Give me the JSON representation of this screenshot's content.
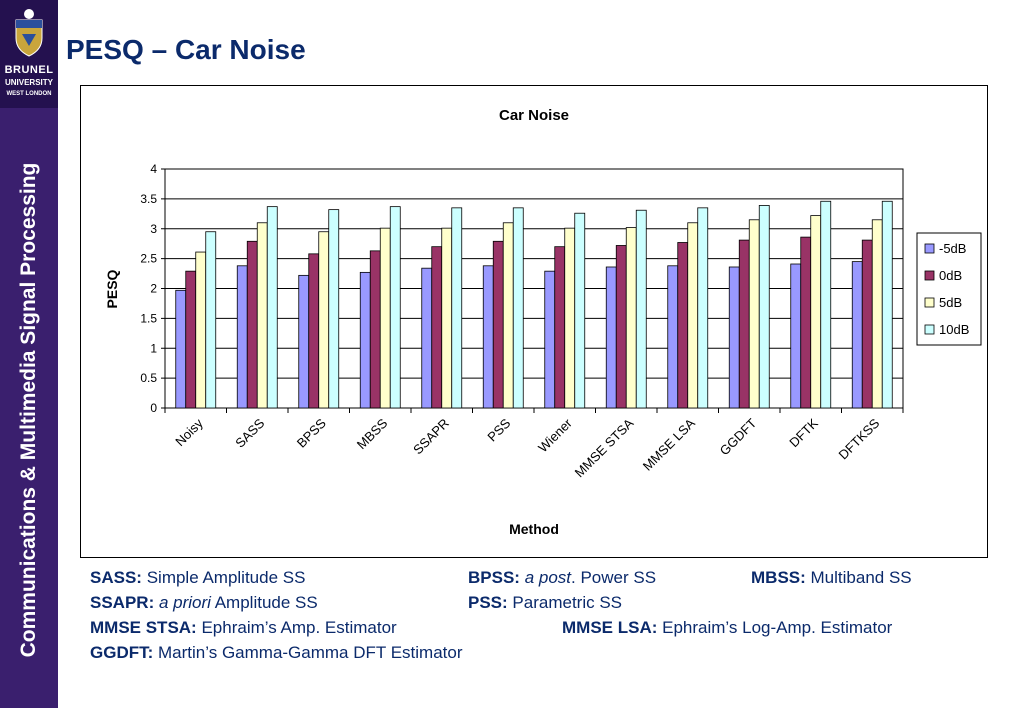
{
  "slide": {
    "title": "PESQ – Car Noise"
  },
  "sidebar": {
    "vertical_title": "Communications & Multimedia Signal Processing",
    "logo": {
      "line1": "BRUNEL",
      "line2": "UNIVERSITY",
      "line3": "WEST LONDON"
    }
  },
  "colors": {
    "sidebar": "#3a1f6e",
    "title": "#0b2a6b",
    "series": [
      "#9999ff",
      "#993366",
      "#ffffcc",
      "#ccffff"
    ]
  },
  "notes": {
    "sass_key": "SASS:",
    "sass_val": "Simple Amplitude SS",
    "bpss_key": "BPSS:",
    "bpss_it": "a post",
    "bpss_val": ". Power SS",
    "mbss_key": "MBSS:",
    "mbss_val": "Multiband SS",
    "ssapr_key": "SSAPR:",
    "ssapr_it": "a priori",
    "ssapr_val": " Amplitude SS",
    "pss_key": "PSS:",
    "pss_val": "Parametric SS",
    "stsa_key": "MMSE STSA:",
    "stsa_val": "Ephraim’s Amp. Estimator",
    "lsa_key": "MMSE LSA:",
    "lsa_val": "Ephraim’s Log-Amp. Estimator",
    "ggdft_key": "GGDFT:",
    "ggdft_val": "Martin’s Gamma-Gamma DFT Estimator"
  },
  "chart_data": {
    "type": "bar",
    "title": "Car Noise",
    "xlabel": "Method",
    "ylabel": "PESQ",
    "ylim": [
      0,
      4
    ],
    "yticks": [
      "0",
      "0.5",
      "1",
      "1.5",
      "2",
      "2.5",
      "3",
      "3.5",
      "4"
    ],
    "grid": true,
    "legend_position": "right",
    "categories": [
      "Noisy",
      "SASS",
      "BPSS",
      "MBSS",
      "SSAPR",
      "PSS",
      "Wiener",
      "MMSE STSA",
      "MMSE LSA",
      "GGDFT",
      "DFTK",
      "DFTKSS"
    ],
    "series": [
      {
        "name": "-5dB",
        "values": [
          1.97,
          2.38,
          2.22,
          2.27,
          2.34,
          2.38,
          2.29,
          2.36,
          2.38,
          2.36,
          2.41,
          2.45
        ]
      },
      {
        "name": "0dB",
        "values": [
          2.29,
          2.79,
          2.58,
          2.63,
          2.7,
          2.79,
          2.7,
          2.72,
          2.77,
          2.81,
          2.86,
          2.81
        ]
      },
      {
        "name": "5dB",
        "values": [
          2.61,
          3.1,
          2.95,
          3.01,
          3.01,
          3.1,
          3.01,
          3.02,
          3.1,
          3.15,
          3.22,
          3.15
        ]
      },
      {
        "name": "10dB",
        "values": [
          2.95,
          3.37,
          3.32,
          3.37,
          3.35,
          3.35,
          3.26,
          3.31,
          3.35,
          3.39,
          3.46,
          3.46
        ]
      }
    ]
  }
}
